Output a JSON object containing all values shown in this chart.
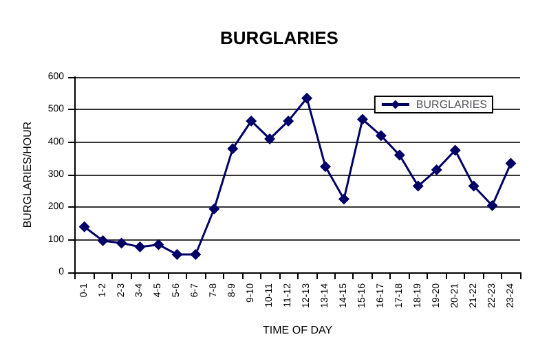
{
  "chart_data": {
    "type": "line",
    "title": "BURGLARIES",
    "xlabel": "TIME OF DAY",
    "ylabel": "BURGLARIES/HOUR",
    "categories": [
      "0-1",
      "1-2",
      "2-3",
      "3-4",
      "4-5",
      "5-6",
      "6-7",
      "7-8",
      "8-9",
      "9-10",
      "10-11",
      "11-12",
      "12-13",
      "13-14",
      "14-15",
      "15-16",
      "16-17",
      "17-18",
      "18-19",
      "19-20",
      "20-21",
      "21-22",
      "22-23",
      "23-24"
    ],
    "series": [
      {
        "name": "BURGLARIES",
        "color": "#000066",
        "values": [
          140,
          97,
          90,
          78,
          85,
          55,
          55,
          195,
          380,
          465,
          410,
          465,
          535,
          325,
          225,
          470,
          420,
          360,
          265,
          315,
          375,
          265,
          205,
          335
        ]
      }
    ],
    "ylim": [
      0,
      600
    ],
    "yticks": [
      0,
      100,
      200,
      300,
      400,
      500,
      600
    ],
    "grid": "y",
    "legend": "top right",
    "marker": "diamond"
  }
}
